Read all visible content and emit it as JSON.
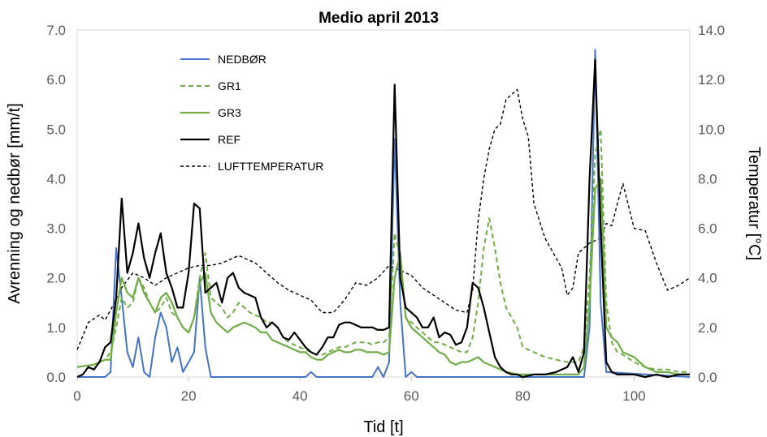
{
  "chart_data": {
    "type": "line",
    "title": "Medio april 2013",
    "xlabel": "Tid [t]",
    "ylabel": "Avrenning og nedbør [mm/t]",
    "y2label": "Temperatur [°C]",
    "xlim": [
      0,
      110
    ],
    "ylim": [
      0,
      7
    ],
    "y2lim": [
      0,
      14
    ],
    "xticks": [
      0,
      20,
      40,
      60,
      80,
      100
    ],
    "xtick_labels": [
      "0",
      "20",
      "40",
      "60",
      "80",
      "100"
    ],
    "yticks": [
      0,
      1,
      2,
      3,
      4,
      5,
      6,
      7
    ],
    "ytick_labels": [
      "0.0",
      "1.0",
      "2.0",
      "3.0",
      "4.0",
      "5.0",
      "6.0",
      "7.0"
    ],
    "y2ticks": [
      0,
      2,
      4,
      6,
      8,
      10,
      12,
      14
    ],
    "y2tick_labels": [
      "0.0",
      "2.0",
      "4.0",
      "6.0",
      "8.0",
      "10.0",
      "12.0",
      "14.0"
    ],
    "grid": false,
    "legend_position": "top-left",
    "series": [
      {
        "name": "NEDBØR",
        "axis": "left",
        "color": "#4472c4",
        "dash": "solid",
        "x": [
          0,
          5,
          6,
          7,
          8,
          9,
          10,
          11,
          12,
          13,
          14,
          15,
          16,
          17,
          18,
          19,
          20,
          21,
          22,
          23,
          24,
          41,
          42,
          43,
          53,
          54,
          55,
          56,
          57,
          58,
          59,
          60,
          61,
          91,
          92,
          93,
          94,
          95,
          110
        ],
        "values": [
          0,
          0,
          0.1,
          2.6,
          1.6,
          0.5,
          0.2,
          0.8,
          0.1,
          0,
          0.8,
          1.3,
          1.0,
          0.3,
          0.6,
          0.1,
          0.3,
          0.5,
          2.0,
          0.6,
          0,
          0,
          0.1,
          0,
          0,
          0.2,
          0,
          0.3,
          4.8,
          1.5,
          0,
          0.1,
          0,
          0,
          1.0,
          6.6,
          1.5,
          0.1,
          0
        ]
      },
      {
        "name": "GR1",
        "axis": "left",
        "color": "#70ad47",
        "dash": "dashed",
        "x": [
          0,
          3,
          5,
          6,
          7,
          8,
          9,
          10,
          11,
          12,
          13,
          14,
          15,
          16,
          17,
          18,
          19,
          20,
          21,
          22,
          23,
          24,
          25,
          26,
          27,
          28,
          29,
          30,
          31,
          32,
          33,
          34,
          35,
          36,
          37,
          38,
          39,
          40,
          41,
          42,
          43,
          44,
          45,
          46,
          47,
          48,
          49,
          50,
          51,
          52,
          53,
          54,
          55,
          56,
          57,
          58,
          59,
          60,
          61,
          62,
          63,
          64,
          65,
          66,
          67,
          68,
          69,
          70,
          71,
          72,
          73,
          74,
          75,
          76,
          77,
          78,
          79,
          80,
          82,
          84,
          86,
          88,
          90,
          91,
          92,
          93,
          94,
          95,
          96,
          97,
          98,
          100,
          102,
          104,
          106,
          108,
          110
        ],
        "values": [
          0.2,
          0.25,
          0.35,
          0.5,
          1.0,
          1.6,
          1.4,
          1.5,
          2.0,
          1.8,
          1.5,
          1.3,
          1.4,
          1.6,
          1.3,
          1.2,
          1.0,
          0.9,
          1.2,
          2.0,
          2.5,
          1.6,
          1.5,
          1.4,
          1.2,
          1.3,
          1.5,
          1.4,
          1.3,
          1.25,
          1.2,
          1.1,
          1.1,
          1.0,
          0.8,
          0.7,
          0.65,
          0.6,
          0.55,
          0.5,
          0.45,
          0.45,
          0.5,
          0.55,
          0.6,
          0.6,
          0.65,
          0.7,
          0.7,
          0.7,
          0.65,
          0.7,
          0.7,
          0.8,
          2.9,
          2.4,
          1.2,
          1.1,
          1.0,
          0.9,
          0.8,
          0.7,
          0.7,
          0.65,
          0.6,
          0.55,
          0.5,
          0.5,
          0.8,
          1.5,
          2.6,
          3.2,
          2.6,
          1.9,
          1.4,
          1.2,
          1.0,
          0.6,
          0.5,
          0.4,
          0.35,
          0.3,
          0.3,
          0.6,
          2.0,
          4.5,
          5.0,
          1.5,
          0.7,
          0.5,
          0.45,
          0.3,
          0.2,
          0.15,
          0.15,
          0.1,
          0.1
        ]
      },
      {
        "name": "GR3",
        "axis": "left",
        "color": "#70ad47",
        "dash": "solid",
        "x": [
          0,
          3,
          5,
          6,
          7,
          8,
          9,
          10,
          11,
          12,
          13,
          14,
          15,
          16,
          17,
          18,
          19,
          20,
          21,
          22,
          23,
          24,
          25,
          26,
          27,
          28,
          29,
          30,
          31,
          32,
          33,
          34,
          35,
          36,
          37,
          38,
          39,
          40,
          41,
          42,
          43,
          44,
          45,
          46,
          47,
          48,
          49,
          50,
          51,
          52,
          53,
          54,
          55,
          56,
          57,
          58,
          59,
          60,
          61,
          62,
          63,
          64,
          65,
          66,
          67,
          68,
          69,
          70,
          71,
          72,
          73,
          74,
          75,
          76,
          77,
          78,
          79,
          80,
          82,
          84,
          86,
          88,
          90,
          91,
          92,
          93,
          94,
          95,
          96,
          97,
          98,
          100,
          102,
          104,
          106,
          108,
          110
        ],
        "values": [
          0.2,
          0.25,
          0.35,
          0.35,
          1.3,
          2.0,
          1.7,
          1.6,
          2.0,
          1.7,
          1.5,
          1.3,
          1.6,
          1.7,
          1.5,
          1.2,
          1.0,
          0.9,
          1.2,
          1.9,
          2.1,
          1.3,
          1.1,
          1.0,
          0.9,
          1.0,
          1.05,
          1.1,
          1.05,
          1.0,
          0.9,
          0.9,
          0.75,
          0.7,
          0.65,
          0.6,
          0.55,
          0.5,
          0.5,
          0.4,
          0.35,
          0.35,
          0.45,
          0.5,
          0.55,
          0.5,
          0.5,
          0.55,
          0.55,
          0.5,
          0.5,
          0.5,
          0.45,
          0.5,
          2.0,
          2.5,
          1.2,
          1.0,
          0.9,
          0.8,
          0.7,
          0.6,
          0.5,
          0.45,
          0.3,
          0.25,
          0.3,
          0.3,
          0.35,
          0.4,
          0.3,
          0.25,
          0.2,
          0.15,
          0.1,
          0.08,
          0.05,
          0.05,
          0.05,
          0.05,
          0.05,
          0.05,
          0.05,
          0.2,
          1.5,
          3.8,
          4.0,
          1.0,
          0.8,
          0.7,
          0.5,
          0.4,
          0.2,
          0.1,
          0.1,
          0.05,
          0.05
        ]
      },
      {
        "name": "REF",
        "axis": "left",
        "color": "#000000",
        "dash": "solid",
        "x": [
          0,
          1,
          2,
          3,
          4,
          5,
          6,
          7,
          8,
          9,
          10,
          11,
          12,
          13,
          14,
          15,
          16,
          17,
          18,
          19,
          20,
          21,
          22,
          23,
          24,
          25,
          26,
          27,
          28,
          29,
          30,
          31,
          32,
          33,
          34,
          35,
          36,
          37,
          38,
          39,
          40,
          41,
          42,
          43,
          44,
          45,
          46,
          47,
          48,
          49,
          50,
          51,
          52,
          53,
          54,
          55,
          56,
          57,
          58,
          59,
          60,
          61,
          62,
          63,
          64,
          65,
          66,
          67,
          68,
          69,
          70,
          71,
          72,
          73,
          74,
          75,
          76,
          77,
          78,
          79,
          80,
          82,
          84,
          86,
          88,
          89,
          90,
          91,
          92,
          93,
          94,
          95,
          96,
          97,
          98,
          100,
          102,
          104,
          106,
          108,
          110
        ],
        "values": [
          0.0,
          0.05,
          0.2,
          0.15,
          0.3,
          0.6,
          0.7,
          1.6,
          3.6,
          2.1,
          2.5,
          3.1,
          2.4,
          2.0,
          2.5,
          2.9,
          2.1,
          1.8,
          1.4,
          1.4,
          2.1,
          3.5,
          3.4,
          1.7,
          1.8,
          1.9,
          1.5,
          2.0,
          2.1,
          1.8,
          1.7,
          1.65,
          1.6,
          1.2,
          1.0,
          1.1,
          1.0,
          0.8,
          0.75,
          0.9,
          0.75,
          0.6,
          0.5,
          0.45,
          0.6,
          0.8,
          0.8,
          1.05,
          1.1,
          1.1,
          1.05,
          1.0,
          1.0,
          1.0,
          0.95,
          0.95,
          1.0,
          5.9,
          2.0,
          1.4,
          1.3,
          1.2,
          1.0,
          1.0,
          1.2,
          0.8,
          0.9,
          0.85,
          0.65,
          0.7,
          1.0,
          1.9,
          1.8,
          1.4,
          0.9,
          0.4,
          0.2,
          0.1,
          0.05,
          0.05,
          0.0,
          0.05,
          0.05,
          0.1,
          0.2,
          0.4,
          0.1,
          0.5,
          4.0,
          6.4,
          3.0,
          0.3,
          0.1,
          0.05,
          0.05,
          0.05,
          0.0,
          0.05,
          0.0,
          0.05,
          0.05
        ]
      },
      {
        "name": "LUFTTEMPERATUR",
        "axis": "right",
        "color": "#000000",
        "dash": "dashed",
        "x": [
          0,
          2,
          4,
          5,
          6,
          8,
          10,
          12,
          14,
          16,
          18,
          20,
          22,
          24,
          26,
          28,
          29,
          30,
          32,
          34,
          36,
          38,
          40,
          42,
          44,
          46,
          48,
          50,
          52,
          54,
          56,
          58,
          60,
          62,
          64,
          66,
          68,
          70,
          71,
          72,
          73,
          74,
          75,
          76,
          77,
          78,
          79,
          80,
          81,
          82,
          84,
          86,
          87,
          88,
          89,
          90,
          92,
          94,
          95,
          96,
          97,
          98,
          100,
          102,
          104,
          106,
          108,
          110
        ],
        "values": [
          1.1,
          2.2,
          2.5,
          2.3,
          2.7,
          3.6,
          4.2,
          4.0,
          3.7,
          4.0,
          4.2,
          4.4,
          4.5,
          4.5,
          4.6,
          4.8,
          4.9,
          4.8,
          4.6,
          4.2,
          3.8,
          3.5,
          3.3,
          3.1,
          2.6,
          2.6,
          3.1,
          3.8,
          3.7,
          4.0,
          4.5,
          4.3,
          4.1,
          3.6,
          3.3,
          3.0,
          2.7,
          2.6,
          3.5,
          6.3,
          8.0,
          9.2,
          10.0,
          10.2,
          11.2,
          11.4,
          11.6,
          10.4,
          9.7,
          7.0,
          5.6,
          4.8,
          4.4,
          3.3,
          3.6,
          5.0,
          5.4,
          5.6,
          6.2,
          6.1,
          7.0,
          7.8,
          6.0,
          5.9,
          4.6,
          3.5,
          3.7,
          4.0
        ]
      }
    ]
  }
}
